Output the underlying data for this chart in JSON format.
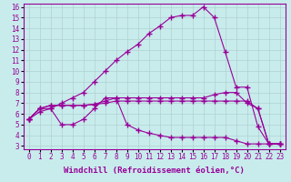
{
  "title": "",
  "xlabel": "Windchill (Refroidissement éolien,°C)",
  "ylabel": "",
  "bg_color": "#c8ecec",
  "line_color": "#990099",
  "grid_color": "#b0d0d0",
  "xlim": [
    0,
    23
  ],
  "ylim": [
    3,
    16
  ],
  "xticks": [
    0,
    1,
    2,
    3,
    4,
    5,
    6,
    7,
    8,
    9,
    10,
    11,
    12,
    13,
    14,
    15,
    16,
    17,
    18,
    19,
    20,
    21,
    22,
    23
  ],
  "yticks": [
    3,
    4,
    5,
    6,
    7,
    8,
    9,
    10,
    11,
    12,
    13,
    14,
    15,
    16
  ],
  "curve_big_x": [
    0,
    1,
    2,
    3,
    4,
    5,
    6,
    7,
    8,
    9,
    10,
    11,
    12,
    13,
    14,
    15,
    16,
    17,
    18,
    19,
    20,
    21,
    22,
    23
  ],
  "curve_big_y": [
    5.5,
    6.2,
    6.5,
    7.0,
    7.5,
    8.0,
    9.0,
    10.0,
    11.0,
    11.8,
    12.5,
    13.5,
    14.2,
    15.0,
    15.2,
    15.2,
    16.0,
    15.0,
    11.8,
    8.5,
    8.5,
    4.8,
    3.2,
    3.2
  ],
  "curve_flat_high_x": [
    0,
    1,
    2,
    3,
    4,
    5,
    6,
    7,
    8,
    9,
    10,
    11,
    12,
    13,
    14,
    15,
    16,
    17,
    18,
    19,
    20,
    21,
    22,
    23
  ],
  "curve_flat_high_y": [
    5.5,
    6.5,
    6.8,
    6.8,
    6.8,
    6.8,
    6.9,
    7.2,
    7.5,
    7.5,
    7.5,
    7.5,
    7.5,
    7.5,
    7.5,
    7.5,
    7.5,
    7.8,
    8.0,
    8.0,
    7.0,
    6.5,
    3.2,
    3.2
  ],
  "curve_bump_x": [
    0,
    1,
    2,
    3,
    4,
    5,
    6,
    7,
    8,
    9,
    10,
    11,
    12,
    13,
    14,
    15,
    16,
    17,
    18,
    19,
    20,
    21,
    22,
    23
  ],
  "curve_bump_y": [
    5.5,
    6.5,
    6.5,
    5.0,
    5.0,
    5.5,
    6.5,
    7.5,
    7.5,
    5.0,
    4.5,
    4.2,
    4.0,
    3.8,
    3.8,
    3.8,
    3.8,
    3.8,
    3.8,
    3.5,
    3.2,
    3.2,
    3.2,
    3.2
  ],
  "curve_flat_mid_x": [
    0,
    1,
    2,
    3,
    4,
    5,
    6,
    7,
    8,
    9,
    10,
    11,
    12,
    13,
    14,
    15,
    16,
    17,
    18,
    19,
    20,
    21,
    22,
    23
  ],
  "curve_flat_mid_y": [
    5.5,
    6.5,
    6.8,
    6.8,
    6.8,
    6.8,
    6.9,
    7.0,
    7.2,
    7.2,
    7.2,
    7.2,
    7.2,
    7.2,
    7.2,
    7.2,
    7.2,
    7.2,
    7.2,
    7.2,
    7.2,
    6.5,
    3.2,
    3.2
  ],
  "marker": "+",
  "marker_size": 4.0,
  "line_width": 0.8,
  "tick_fontsize": 5.5,
  "label_fontsize": 6.5
}
